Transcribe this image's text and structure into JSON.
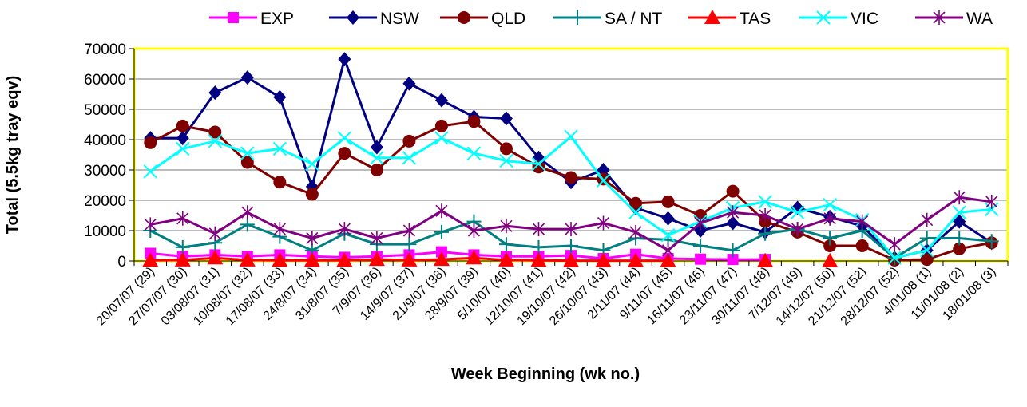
{
  "chart_data": {
    "type": "line",
    "title": "",
    "xlabel": "Week Beginning (wk no.)",
    "ylabel": "Total (5.5kg tray eqv)",
    "ylim": [
      0,
      70000
    ],
    "yticks": [
      "0",
      "10000",
      "20000",
      "30000",
      "40000",
      "50000",
      "60000",
      "70000"
    ],
    "grid": "horizontal",
    "legend_position": "top",
    "categories": [
      "20/07/07 (29)",
      "27/07/07 (30)",
      "03/08/07 (31)",
      "10/08/07 (32)",
      "17/08/07 (33)",
      "24/8/07 (34)",
      "31/8/07 (35)",
      "7/9/07 (36)",
      "14/9/07 (37)",
      "21/9/07 (38)",
      "28/9/07 (39)",
      "5/10/07 (40)",
      "12/10/07 (41)",
      "19/10/07 (42)",
      "26/10/07 (43)",
      "2/11/07 (44)",
      "9/11/07 (45)",
      "16/11/07 (46)",
      "23/11/07 (47)",
      "30/11/07 (48)",
      "7/12/07 (49)",
      "14/12/07 (50)",
      "21/12/07 (52)",
      "28/12/07 (52)",
      "4/01/08 (1)",
      "11/01/08 (2)",
      "18/01/08 (3)"
    ],
    "series": [
      {
        "name": "EXP",
        "color": "#ff00ff",
        "marker": "square",
        "values": [
          2500,
          1500,
          2000,
          1500,
          2000,
          1500,
          1200,
          1500,
          2000,
          3000,
          2000,
          1500,
          1500,
          1800,
          800,
          2200,
          800,
          600,
          500,
          500,
          null,
          null,
          null,
          null,
          null,
          null,
          null
        ]
      },
      {
        "name": "NSW",
        "color": "#000080",
        "marker": "diamond",
        "values": [
          40500,
          40500,
          55500,
          60500,
          54000,
          24500,
          66500,
          37500,
          58500,
          53000,
          47500,
          47000,
          34000,
          26000,
          30000,
          17500,
          14000,
          10000,
          12500,
          9500,
          17500,
          14500,
          11500,
          1000,
          3500,
          13000,
          6000
        ]
      },
      {
        "name": "QLD",
        "color": "#800000",
        "marker": "circle",
        "values": [
          39000,
          44500,
          42500,
          32500,
          26000,
          22000,
          35500,
          30000,
          39500,
          44500,
          46000,
          37000,
          31000,
          27500,
          27000,
          19000,
          19500,
          15000,
          23000,
          13000,
          9500,
          5000,
          5000,
          300,
          500,
          4000,
          6000
        ]
      },
      {
        "name": "SA / NT",
        "color": "#008080",
        "marker": "plus",
        "values": [
          10000,
          4500,
          6000,
          12000,
          8000,
          3500,
          9000,
          5500,
          5500,
          9500,
          13000,
          5500,
          4500,
          5000,
          3500,
          7500,
          7000,
          5000,
          3500,
          9000,
          10500,
          7500,
          10000,
          1000,
          7500,
          7500,
          6500
        ]
      },
      {
        "name": "TAS",
        "color": "#ff0000",
        "marker": "triangle",
        "values": [
          200,
          300,
          1000,
          300,
          200,
          200,
          200,
          500,
          300,
          500,
          1000,
          300,
          200,
          100,
          100,
          100,
          100,
          null,
          null,
          100,
          null,
          50,
          null,
          null,
          null,
          null,
          null
        ]
      },
      {
        "name": "VIC",
        "color": "#00ffff",
        "marker": "x",
        "values": [
          29500,
          37000,
          39500,
          35500,
          37000,
          32000,
          40500,
          34000,
          34000,
          40500,
          35500,
          33000,
          32000,
          41000,
          26500,
          16000,
          8500,
          13000,
          17500,
          19500,
          16000,
          18500,
          13500,
          1000,
          3500,
          16000,
          17000
        ]
      },
      {
        "name": "WA",
        "color": "#800080",
        "marker": "star",
        "values": [
          12000,
          14000,
          9000,
          16000,
          10500,
          7500,
          10500,
          7500,
          10000,
          16500,
          10000,
          11500,
          10500,
          10500,
          12500,
          9500,
          3500,
          12500,
          16000,
          15000,
          10500,
          14000,
          13000,
          5500,
          13500,
          21000,
          19500
        ]
      }
    ]
  }
}
